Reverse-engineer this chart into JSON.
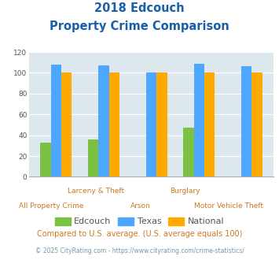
{
  "title_line1": "2018 Edcouch",
  "title_line2": "Property Crime Comparison",
  "cat_labels_top": [
    "",
    "Larceny & Theft",
    "",
    "Burglary",
    ""
  ],
  "cat_labels_bottom": [
    "All Property Crime",
    "",
    "Arson",
    "",
    "Motor Vehicle Theft"
  ],
  "edcouch": [
    33,
    36,
    0,
    47,
    0
  ],
  "texas": [
    108,
    107,
    100,
    109,
    106
  ],
  "national": [
    100,
    100,
    100,
    100,
    100
  ],
  "color_edcouch": "#7bc142",
  "color_texas": "#4da6ff",
  "color_national": "#ffaa00",
  "color_bg": "#dce8ee",
  "color_title": "#1a5fa8",
  "color_axis_label": "#cc7722",
  "color_legend_text": "#555555",
  "color_footnote1": "#cc7722",
  "color_footnote2": "#7799aa",
  "ylim": [
    0,
    120
  ],
  "yticks": [
    0,
    20,
    40,
    60,
    80,
    100,
    120
  ],
  "footnote1": "Compared to U.S. average. (U.S. average equals 100)",
  "footnote2": "© 2025 CityRating.com - https://www.cityrating.com/crime-statistics/",
  "bar_width": 0.22,
  "legend_labels": [
    "Edcouch",
    "Texas",
    "National"
  ]
}
